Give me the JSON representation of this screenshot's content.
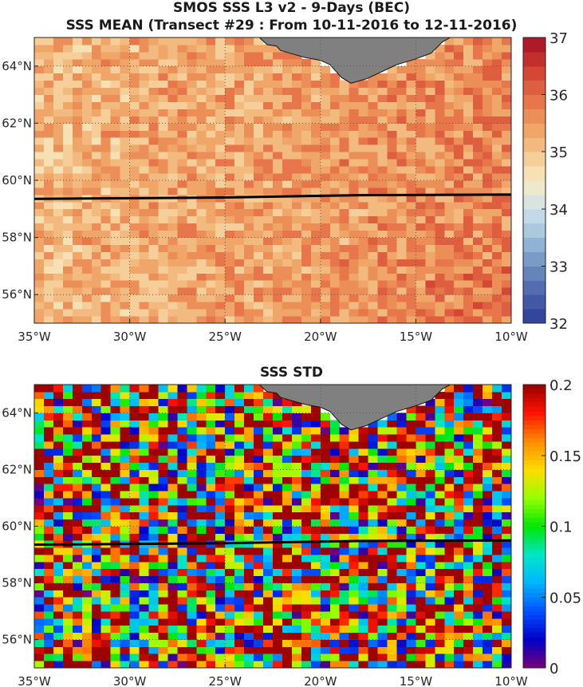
{
  "header": {
    "title_line1": "SMOS SSS L3 v2 - 9-Days (BEC)",
    "title_line2": "SSS MEAN (Transect #29 : From 10-11-2016 to 12-11-2016)"
  },
  "chart_data": [
    {
      "type": "heatmap",
      "title": "SSS MEAN (Transect #29 : From 10-11-2016 to 12-11-2016)",
      "xlabel": "",
      "ylabel": "",
      "xlim": [
        -35,
        -10
      ],
      "ylim": [
        55,
        65
      ],
      "x_ticks": [
        -35,
        -30,
        -25,
        -20,
        -15,
        -10
      ],
      "x_tick_labels": [
        "35°W",
        "30°W",
        "25°W",
        "20°W",
        "15°W",
        "10°W"
      ],
      "y_ticks": [
        56,
        58,
        60,
        62,
        64
      ],
      "y_tick_labels": [
        "56°N",
        "58°N",
        "60°N",
        "62°N",
        "64°N"
      ],
      "colorbar": {
        "min": 32,
        "max": 37,
        "ticks": [
          32,
          33,
          34,
          35,
          36,
          37
        ],
        "tick_labels": [
          "32",
          "33",
          "34",
          "35",
          "36",
          "37"
        ],
        "colormap": "diverging-red-blue"
      },
      "field_summary": {
        "typical_range": [
          34.0,
          36.5
        ],
        "predominant_value": 35.3,
        "higher_values_region": "east and south-east",
        "land_mask_color": "#808080"
      },
      "transect": {
        "lon": [
          -35,
          -25,
          -18,
          -10
        ],
        "lat": [
          59.35,
          59.4,
          59.48,
          59.5
        ],
        "color": "#000000"
      },
      "grid": true
    },
    {
      "type": "heatmap",
      "title": "SSS STD",
      "xlabel": "",
      "ylabel": "",
      "xlim": [
        -35,
        -10
      ],
      "ylim": [
        55,
        65
      ],
      "x_ticks": [
        -35,
        -30,
        -25,
        -20,
        -15,
        -10
      ],
      "x_tick_labels": [
        "35°W",
        "30°W",
        "25°W",
        "20°W",
        "15°W",
        "10°W"
      ],
      "y_ticks": [
        56,
        58,
        60,
        62,
        64
      ],
      "y_tick_labels": [
        "56°N",
        "58°N",
        "60°N",
        "62°N",
        "64°N"
      ],
      "colorbar": {
        "min": 0,
        "max": 0.2,
        "ticks": [
          0,
          0.05,
          0.1,
          0.15,
          0.2
        ],
        "tick_labels": [
          "0",
          "0.05",
          "0.1",
          "0.15",
          "0.2"
        ],
        "colormap": "jet"
      },
      "field_summary": {
        "typical_range": [
          0.02,
          0.2
        ],
        "pattern": "noisy, saturated at 0.2 in many cells",
        "land_mask_color": "#808080"
      },
      "transect": {
        "lon": [
          -35,
          -25,
          -18,
          -10
        ],
        "lat": [
          59.35,
          59.4,
          59.48,
          59.5
        ],
        "color": "#000000"
      },
      "grid": true
    }
  ],
  "land": {
    "name": "Iceland",
    "outline": [
      [
        -23.2,
        65
      ],
      [
        -22.8,
        64.75
      ],
      [
        -22.3,
        64.7
      ],
      [
        -22.1,
        64.55
      ],
      [
        -21.6,
        64.45
      ],
      [
        -20.8,
        64.3
      ],
      [
        -20.0,
        64.2
      ],
      [
        -19.5,
        64.05
      ],
      [
        -18.9,
        63.6
      ],
      [
        -18.4,
        63.4
      ],
      [
        -17.6,
        63.55
      ],
      [
        -16.8,
        63.8
      ],
      [
        -16.0,
        64.05
      ],
      [
        -15.0,
        64.25
      ],
      [
        -14.2,
        64.45
      ],
      [
        -13.6,
        64.85
      ],
      [
        -13.2,
        65
      ],
      [
        -23.2,
        65
      ]
    ]
  },
  "colors": {
    "mean_scale": [
      "#2c3c96",
      "#4a62a8",
      "#6e8fbf",
      "#9dbfd9",
      "#cfe2eb",
      "#f6ebc3",
      "#f4c48b",
      "#ef9a5e",
      "#e46b45",
      "#cd3b2e",
      "#a50f26"
    ],
    "std_scale": [
      "#7a007a",
      "#0000c8",
      "#0050ff",
      "#00b4ff",
      "#00e6c8",
      "#00e600",
      "#96ff00",
      "#ffdc00",
      "#ff8c00",
      "#ff1400",
      "#960000"
    ],
    "land": "#808080",
    "transect": "#000000",
    "grid": "#555555"
  }
}
